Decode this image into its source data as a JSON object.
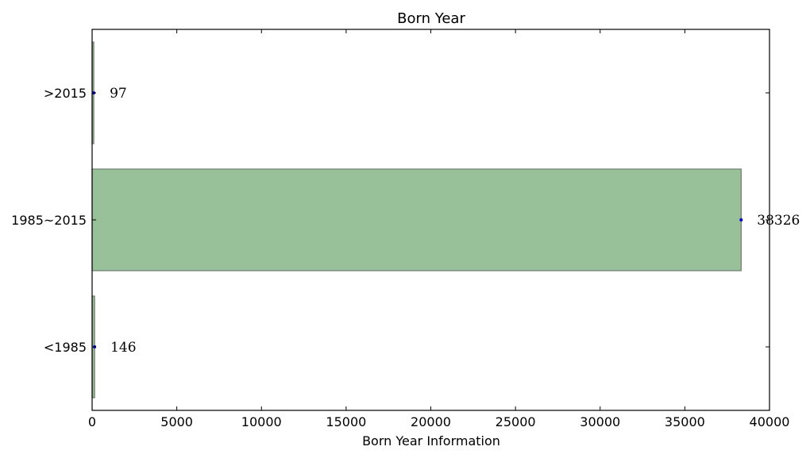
{
  "chart_data": {
    "type": "bar",
    "orientation": "horizontal",
    "title": "Born Year",
    "xlabel": "Born Year Information",
    "ylabel": "",
    "categories": [
      "<1985",
      "1985~2015",
      ">2015"
    ],
    "values": [
      146,
      38326,
      97
    ],
    "xlim": [
      0,
      40000
    ],
    "xticks": [
      0,
      5000,
      10000,
      15000,
      20000,
      25000,
      30000,
      35000,
      40000
    ],
    "grid": false,
    "legend": "none",
    "colors": {
      "bar_fill": "#99c199",
      "bar_edge": "#6e7a6e",
      "marker": "#0000cc"
    }
  }
}
